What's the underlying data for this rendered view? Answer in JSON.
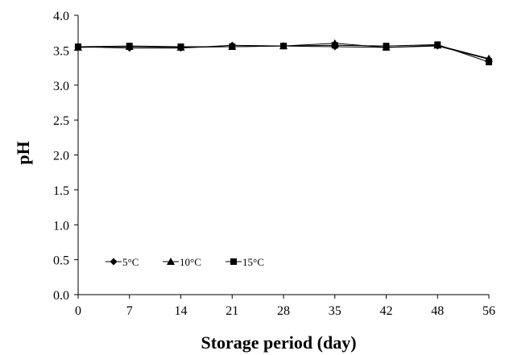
{
  "chart_data": {
    "type": "line",
    "title": "",
    "xlabel": "Storage period (day)",
    "ylabel": "pH",
    "x": [
      0,
      7,
      14,
      21,
      28,
      35,
      42,
      48,
      56
    ],
    "x_tick_labels": [
      "0",
      "7",
      "14",
      "21",
      "28",
      "35",
      "42",
      "48",
      "56"
    ],
    "ylim": [
      0.0,
      4.0
    ],
    "y_ticks": [
      "0.0",
      "0.5",
      "1.0",
      "1.5",
      "2.0",
      "2.5",
      "3.0",
      "3.5",
      "4.0"
    ],
    "grid": false,
    "legend_position": "bottom-left",
    "series": [
      {
        "name": "5°C",
        "marker": "diamond",
        "values": [
          3.55,
          3.53,
          3.53,
          3.57,
          3.56,
          3.55,
          3.54,
          3.56,
          3.37
        ]
      },
      {
        "name": "10°C",
        "marker": "triangle",
        "values": [
          3.54,
          3.55,
          3.54,
          3.55,
          3.56,
          3.6,
          3.54,
          3.57,
          3.38
        ]
      },
      {
        "name": "15°C",
        "marker": "square",
        "values": [
          3.55,
          3.56,
          3.55,
          3.55,
          3.56,
          3.57,
          3.56,
          3.58,
          3.33
        ]
      }
    ]
  }
}
